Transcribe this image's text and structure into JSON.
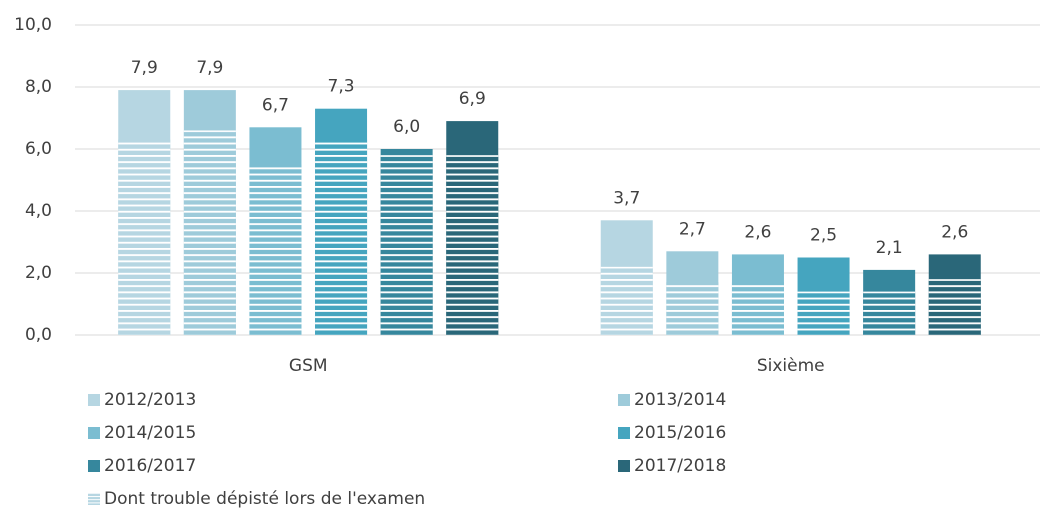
{
  "chart_data": {
    "type": "bar",
    "categories": [
      "GSM",
      "Sixième"
    ],
    "ylim": [
      0,
      10
    ],
    "yticks": [
      {
        "value": 0,
        "label": "0,0"
      },
      {
        "value": 2,
        "label": "2,0"
      },
      {
        "value": 4,
        "label": "4,0"
      },
      {
        "value": 6,
        "label": "6,0"
      },
      {
        "value": 8,
        "label": "8,0"
      },
      {
        "value": 10,
        "label": "10,0"
      }
    ],
    "grid": true,
    "subset_name": "Dont trouble dépisté lors de l'examen",
    "series": [
      {
        "name": "2012/2013",
        "color": "#b6d6e2",
        "values": [
          7.9,
          3.7
        ],
        "value_labels": [
          "7,9",
          "3,7"
        ],
        "subset_values": [
          6.3,
          2.2
        ]
      },
      {
        "name": "2013/2014",
        "color": "#9ecbda",
        "values": [
          7.9,
          2.7
        ],
        "value_labels": [
          "7,9",
          "2,7"
        ],
        "subset_values": [
          6.6,
          1.7
        ]
      },
      {
        "name": "2014/2015",
        "color": "#7bbdd1",
        "values": [
          6.7,
          2.6
        ],
        "value_labels": [
          "6,7",
          "2,6"
        ],
        "subset_values": [
          5.5,
          1.7
        ]
      },
      {
        "name": "2015/2016",
        "color": "#45a5bf",
        "values": [
          7.3,
          2.5
        ],
        "value_labels": [
          "7,3",
          "2,5"
        ],
        "subset_values": [
          6.3,
          1.4
        ]
      },
      {
        "name": "2016/2017",
        "color": "#36879d",
        "values": [
          6.0,
          2.1
        ],
        "value_labels": [
          "6,0",
          "2,1"
        ],
        "subset_values": [
          5.8,
          1.4
        ]
      },
      {
        "name": "2017/2018",
        "color": "#2a6779",
        "values": [
          6.9,
          2.6
        ],
        "value_labels": [
          "6,9",
          "2,6"
        ],
        "subset_values": [
          5.8,
          1.8
        ]
      }
    ]
  }
}
